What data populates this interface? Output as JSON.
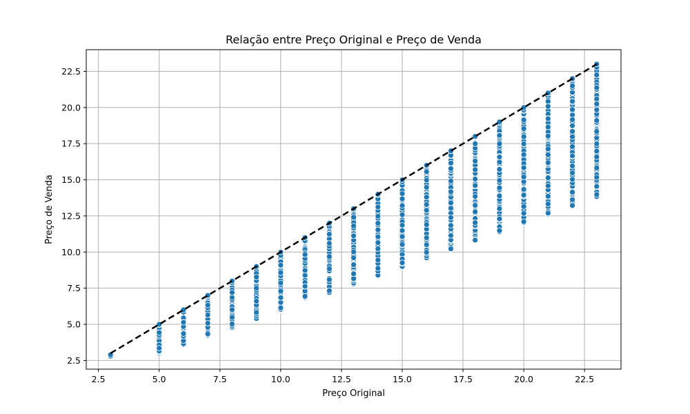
{
  "chart_data": {
    "type": "scatter",
    "title": "Relação entre Preço Original e Preço de Venda",
    "xlabel": "Preço Original",
    "ylabel": "Preço de Venda",
    "xlim": [
      2.0,
      24.0
    ],
    "ylim": [
      1.9,
      24.0
    ],
    "xticks": [
      2.5,
      5.0,
      7.5,
      10.0,
      12.5,
      15.0,
      17.5,
      20.0,
      22.5
    ],
    "yticks": [
      2.5,
      5.0,
      7.5,
      10.0,
      12.5,
      15.0,
      17.5,
      20.0,
      22.5
    ],
    "xtick_labels": [
      "2.5",
      "5.0",
      "7.5",
      "10.0",
      "12.5",
      "15.0",
      "17.5",
      "20.0",
      "22.5"
    ],
    "ytick_labels": [
      "2.5",
      "5.0",
      "7.5",
      "10.0",
      "12.5",
      "15.0",
      "17.5",
      "20.0",
      "22.5"
    ],
    "grid": true,
    "point_color": "#1f77b4",
    "reference_line": {
      "style": "dashed",
      "color": "#000000",
      "from": [
        3,
        3
      ],
      "to": [
        23,
        23
      ]
    },
    "columns": [
      {
        "x": 3,
        "y_min": 2.8,
        "y_max": 2.9
      },
      {
        "x": 5,
        "y_min": 3.0,
        "y_max": 5.0
      },
      {
        "x": 6,
        "y_min": 3.6,
        "y_max": 6.0
      },
      {
        "x": 7,
        "y_min": 4.2,
        "y_max": 7.0
      },
      {
        "x": 8,
        "y_min": 4.8,
        "y_max": 8.0
      },
      {
        "x": 9,
        "y_min": 5.4,
        "y_max": 9.0
      },
      {
        "x": 10,
        "y_min": 6.0,
        "y_max": 10.0
      },
      {
        "x": 11,
        "y_min": 6.8,
        "y_max": 11.0
      },
      {
        "x": 12,
        "y_min": 7.2,
        "y_max": 12.0
      },
      {
        "x": 13,
        "y_min": 7.8,
        "y_max": 13.0
      },
      {
        "x": 14,
        "y_min": 8.4,
        "y_max": 14.0
      },
      {
        "x": 15,
        "y_min": 9.0,
        "y_max": 15.0
      },
      {
        "x": 16,
        "y_min": 9.6,
        "y_max": 16.0
      },
      {
        "x": 17,
        "y_min": 10.2,
        "y_max": 17.0
      },
      {
        "x": 18,
        "y_min": 10.8,
        "y_max": 18.0
      },
      {
        "x": 19,
        "y_min": 11.4,
        "y_max": 19.0
      },
      {
        "x": 20,
        "y_min": 12.0,
        "y_max": 20.0
      },
      {
        "x": 21,
        "y_min": 12.6,
        "y_max": 21.0
      },
      {
        "x": 22,
        "y_min": 13.2,
        "y_max": 22.0
      },
      {
        "x": 23,
        "y_min": 13.8,
        "y_max": 23.0
      }
    ]
  }
}
